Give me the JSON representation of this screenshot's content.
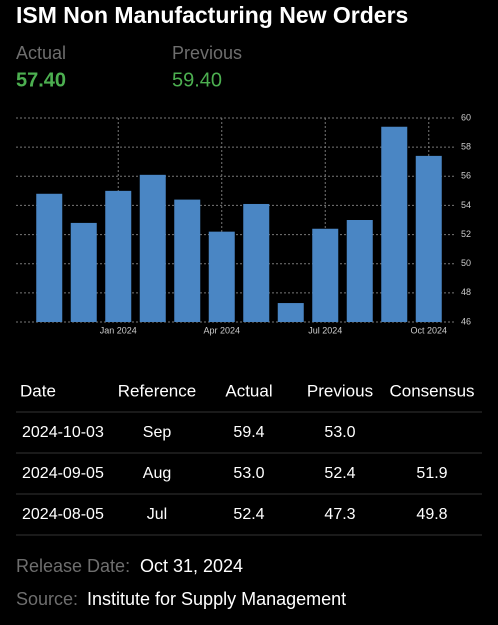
{
  "header": {
    "title": "ISM Non Manufacturing New Orders",
    "actual_label": "Actual",
    "actual": "57.40",
    "previous_label": "Previous",
    "previous": "59.40"
  },
  "chart_data": {
    "type": "bar",
    "categories": [
      null,
      null,
      "Jan 2024",
      null,
      null,
      "Apr 2024",
      null,
      null,
      "Jul 2024",
      null,
      null,
      "Oct 2024"
    ],
    "values": [
      54.8,
      52.8,
      55.0,
      56.1,
      54.4,
      52.2,
      54.1,
      47.3,
      52.4,
      53.0,
      59.4,
      57.4
    ],
    "color": "#4a86c4",
    "ylim": [
      46,
      60
    ],
    "yticks": [
      46,
      48,
      50,
      52,
      54,
      56,
      58,
      60
    ],
    "grid": true,
    "y_axis_side": "right"
  },
  "table": {
    "columns": [
      "Date",
      "Reference",
      "Actual",
      "Previous",
      "Consensus"
    ],
    "rows": [
      [
        "2024-10-03",
        "Sep",
        "59.4",
        "53.0",
        null
      ],
      [
        "2024-09-05",
        "Aug",
        "53.0",
        "52.4",
        "51.9"
      ],
      [
        "2024-08-05",
        "Jul",
        "52.4",
        "47.3",
        "49.8"
      ]
    ]
  },
  "footer": {
    "release_label": "Release Date:",
    "release_date": "Oct 31, 2024",
    "source_label": "Source:",
    "source": "Institute for Supply Management"
  }
}
